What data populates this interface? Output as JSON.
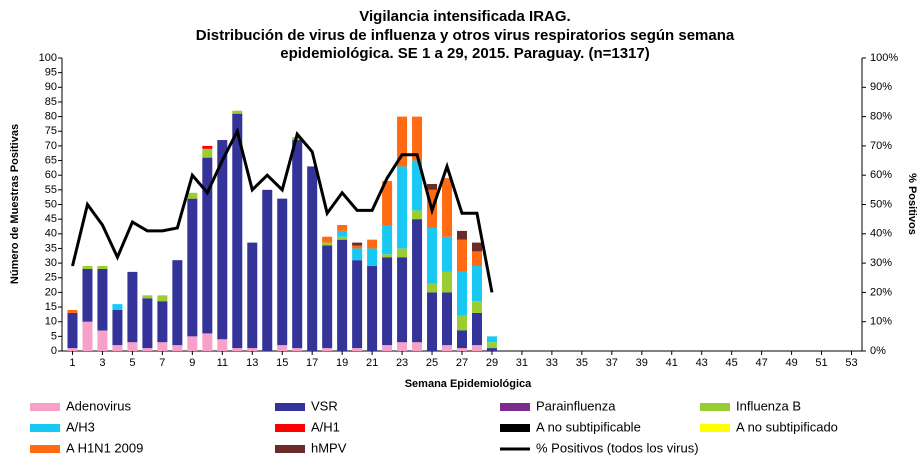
{
  "chart_data": {
    "type": "bar",
    "stacked": true,
    "title": "Vigilancia intensificada IRAG.",
    "subtitle": [
      "Distribución de virus de influenza y otros virus respiratorios según semana",
      "epidemiológica. SE 1 a 29, 2015. Paraguay. (n=1317)"
    ],
    "x_label": "Semana Epidemiológica",
    "y_label": "Número de Muestras Positivas",
    "y2_label": "% Positivos",
    "x": [
      1,
      2,
      3,
      4,
      5,
      6,
      7,
      8,
      9,
      10,
      11,
      12,
      13,
      14,
      15,
      16,
      17,
      18,
      19,
      20,
      21,
      22,
      23,
      24,
      25,
      26,
      27,
      28,
      29
    ],
    "xlim": [
      0.3,
      53.7
    ],
    "xticks": [
      1,
      3,
      5,
      7,
      9,
      11,
      13,
      15,
      17,
      19,
      21,
      23,
      25,
      27,
      29,
      31,
      33,
      35,
      37,
      39,
      41,
      43,
      45,
      47,
      49,
      51,
      53
    ],
    "ylim": [
      0,
      100
    ],
    "yticks": [
      0,
      5,
      10,
      15,
      20,
      25,
      30,
      35,
      40,
      45,
      50,
      55,
      60,
      65,
      70,
      75,
      80,
      85,
      90,
      95,
      100
    ],
    "y2lim": [
      0,
      100
    ],
    "y2ticks": [
      {
        "value": 0,
        "label": "0%"
      },
      {
        "value": 10,
        "label": "10%"
      },
      {
        "value": 20,
        "label": "20%"
      },
      {
        "value": 30,
        "label": "30%"
      },
      {
        "value": 40,
        "label": "40%"
      },
      {
        "value": 50,
        "label": "50%"
      },
      {
        "value": 60,
        "label": "60%"
      },
      {
        "value": 70,
        "label": "70%"
      },
      {
        "value": 80,
        "label": "80%"
      },
      {
        "value": 90,
        "label": "90%"
      },
      {
        "value": 100,
        "label": "100%"
      }
    ],
    "series": [
      {
        "name": "Adenovirus",
        "color": "#f7a1c9",
        "values": [
          1,
          10,
          7,
          2,
          3,
          1,
          3,
          2,
          5,
          6,
          4,
          1,
          1,
          0,
          2,
          1,
          0,
          1,
          0,
          1,
          0,
          2,
          3,
          3,
          0,
          2,
          1,
          2,
          0
        ]
      },
      {
        "name": "VSR",
        "color": "#333399",
        "values": [
          12,
          18,
          21,
          12,
          24,
          17,
          14,
          29,
          47,
          60,
          68,
          80,
          36,
          55,
          50,
          71,
          63,
          35,
          38,
          30,
          29,
          30,
          29,
          42,
          20,
          18,
          6,
          11,
          1
        ]
      },
      {
        "name": "Parainfluenza",
        "color": "#7b2c8f",
        "values": [
          0,
          0,
          0,
          0,
          0,
          0,
          0,
          0,
          0,
          0,
          0,
          0,
          0,
          0,
          0,
          0,
          0,
          0,
          0,
          0,
          0,
          0,
          0,
          0,
          0,
          0,
          0,
          0,
          0
        ]
      },
      {
        "name": "Influenza  B",
        "color": "#9acd32",
        "values": [
          0,
          1,
          1,
          0,
          0,
          1,
          2,
          0,
          2,
          3,
          0,
          1,
          0,
          0,
          0,
          1,
          0,
          1,
          1,
          0,
          0,
          1,
          3,
          3,
          3,
          7,
          5,
          4,
          2
        ]
      },
      {
        "name": "A/H3",
        "color": "#19c9f5",
        "values": [
          0,
          0,
          0,
          2,
          0,
          0,
          0,
          0,
          0,
          0,
          0,
          0,
          0,
          0,
          0,
          0,
          0,
          0,
          2,
          4,
          6,
          10,
          28,
          17,
          19,
          12,
          15,
          12,
          2
        ]
      },
      {
        "name": "A/H1",
        "color": "#ff0000",
        "values": [
          0,
          0,
          0,
          0,
          0,
          0,
          0,
          0,
          0,
          1,
          0,
          0,
          0,
          0,
          0,
          0,
          0,
          0,
          0,
          0,
          0,
          0,
          0,
          0,
          0,
          0,
          0,
          0,
          0
        ]
      },
      {
        "name": "A no subtipificable",
        "color": "#000000",
        "values": [
          0,
          0,
          0,
          0,
          0,
          0,
          0,
          0,
          0,
          0,
          0,
          0,
          0,
          0,
          0,
          0,
          0,
          0,
          0,
          0,
          0,
          0,
          0,
          0,
          0,
          0,
          0,
          0,
          0
        ]
      },
      {
        "name": "A no subtipificado",
        "color": "#ffff00",
        "values": [
          0,
          0,
          0,
          0,
          0,
          0,
          0,
          0,
          0,
          0,
          0,
          0,
          0,
          0,
          0,
          0,
          0,
          0,
          0,
          0,
          0,
          0,
          0,
          0,
          0,
          0,
          0,
          0,
          0
        ]
      },
      {
        "name": "A H1N1 2009",
        "color": "#ff6a13",
        "values": [
          1,
          0,
          0,
          0,
          0,
          0,
          0,
          0,
          0,
          0,
          0,
          0,
          0,
          0,
          0,
          0,
          0,
          2,
          2,
          1,
          3,
          15,
          17,
          15,
          13,
          20,
          11,
          5,
          0
        ]
      },
      {
        "name": "hMPV",
        "color": "#6b2b2b",
        "values": [
          0,
          0,
          0,
          0,
          0,
          0,
          0,
          0,
          0,
          0,
          0,
          0,
          0,
          0,
          0,
          0,
          0,
          0,
          0,
          1,
          0,
          0,
          0,
          0,
          2,
          0,
          3,
          3,
          0
        ]
      },
      {
        "name": "% Positivos (todos los virus)",
        "color": "#000000",
        "type": "line",
        "axis": "y2",
        "values": [
          29,
          50,
          43,
          32,
          44,
          41,
          41,
          42,
          60,
          54,
          65,
          75,
          55,
          60,
          55,
          74,
          68,
          47,
          54,
          48,
          48,
          59,
          67,
          67,
          48,
          63,
          47,
          47,
          20
        ]
      }
    ]
  }
}
